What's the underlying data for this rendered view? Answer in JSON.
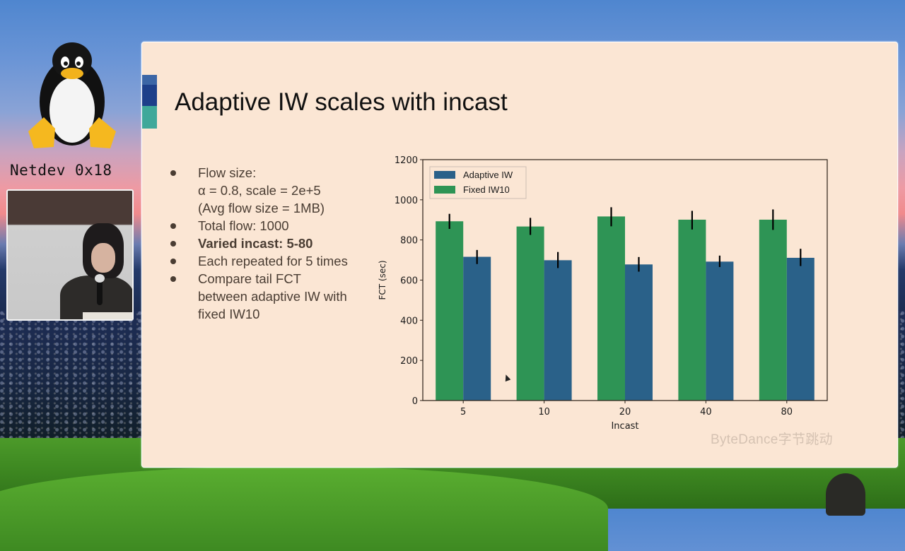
{
  "event": {
    "name": "Netdev 0x18"
  },
  "slide": {
    "title": "Adaptive IW scales with incast",
    "bullets": [
      {
        "lines": [
          "Flow size:",
          "α = 0.8, scale = 2e+5",
          "(Avg flow size = 1MB)"
        ],
        "bold": false
      },
      {
        "lines": [
          "Total flow: 1000"
        ],
        "bold": false
      },
      {
        "lines": [
          "Varied incast: 5-80"
        ],
        "bold": true
      },
      {
        "lines": [
          "Each repeated for 5 times"
        ],
        "bold": false
      },
      {
        "lines": [
          "Compare tail FCT",
          "between adaptive IW with",
          "fixed IW10"
        ],
        "bold": false
      }
    ],
    "watermark": "ByteDance字节跳动"
  },
  "colors": {
    "adaptive": "#2a6189",
    "fixed": "#2e9455",
    "slide_bg": "#fbe6d4",
    "axis": "#2b2018",
    "errorbar": "#000000"
  },
  "chart_data": {
    "type": "bar",
    "title": "",
    "xlabel": "Incast",
    "ylabel": "FCT (sec)",
    "categories": [
      "5",
      "10",
      "20",
      "40",
      "80"
    ],
    "series": [
      {
        "name": "Adaptive IW",
        "values": [
          716,
          699,
          678,
          692,
          711
        ],
        "err_low": [
          680,
          660,
          642,
          665,
          670
        ],
        "err_high": [
          750,
          740,
          715,
          722,
          756
        ]
      },
      {
        "name": "Fixed IW10",
        "values": [
          893,
          867,
          917,
          901,
          901
        ],
        "err_low": [
          855,
          825,
          868,
          852,
          850
        ],
        "err_high": [
          930,
          910,
          963,
          945,
          952
        ]
      }
    ],
    "ylim": [
      0,
      1200
    ],
    "yticks": [
      0,
      200,
      400,
      600,
      800,
      1000,
      1200
    ],
    "grid": false,
    "legend_position": "upper left"
  }
}
